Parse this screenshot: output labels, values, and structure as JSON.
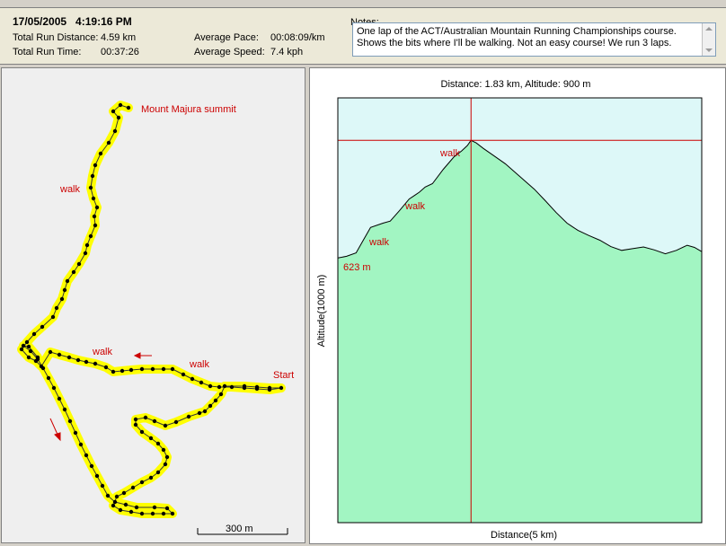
{
  "summary": {
    "datetime": "17/05/2005   4:19:16 PM",
    "distance_label": "Total Run Distance:",
    "distance_value": "4.59 km",
    "time_label": "Total Run Time:",
    "time_value": "00:37:26",
    "pace_label": "Average Pace:",
    "pace_value": "00:08:09/km",
    "speed_label": "Average Speed:",
    "speed_value": "7.4 kph",
    "notes_label": "Notes:",
    "notes_text": "One lap of the ACT/Australian Mountain Running Championships course. Shows the bits where I'll be walking. Not an easy course! We run 3 laps."
  },
  "map": {
    "summit_label": "Mount Majura summit",
    "start_label": "Start",
    "walk_labels": [
      "walk",
      "walk",
      "walk"
    ],
    "scale_label": "300 m",
    "colors": {
      "route": "#ffff00",
      "point": "#000000",
      "annotation": "#cc0000"
    }
  },
  "chart": {
    "title": "Distance: 1.83 km, Altitude: 900 m",
    "ylabel": "Altitude(1000 m)",
    "xlabel": "Distance(5 km)",
    "start_altitude_label": "623 m",
    "walk_labels": [
      "walk",
      "walk",
      "walk"
    ],
    "colors": {
      "sky": "#ddf8f8",
      "terrain": "#a2f5c2",
      "cursor": "#cc0000"
    }
  },
  "chart_data": {
    "type": "area",
    "title": "Distance: 1.83 km, Altitude: 900 m",
    "xlabel": "Distance(5 km)",
    "ylabel": "Altitude(1000 m)",
    "xlim": [
      0,
      5
    ],
    "ylim": [
      0,
      1000
    ],
    "cursor": {
      "x": 1.83,
      "y": 900
    },
    "series": [
      {
        "x": [
          0,
          0.12,
          0.25,
          0.35,
          0.45,
          0.62,
          0.72,
          0.85,
          0.98,
          1.05,
          1.12,
          1.2,
          1.3,
          1.45,
          1.6,
          1.7,
          1.78,
          1.83,
          1.9,
          2.0,
          2.15,
          2.3,
          2.5,
          2.7,
          2.85,
          3.0,
          3.15,
          3.3,
          3.45,
          3.6,
          3.75,
          3.9,
          4.05,
          4.2,
          4.35,
          4.5,
          4.65,
          4.8,
          4.9,
          5.0
        ],
        "y": [
          623,
          627,
          635,
          665,
          695,
          705,
          710,
          735,
          762,
          770,
          778,
          790,
          798,
          832,
          862,
          875,
          888,
          900,
          894,
          881,
          863,
          845,
          815,
          785,
          758,
          730,
          705,
          688,
          676,
          665,
          650,
          641,
          645,
          649,
          642,
          633,
          641,
          653,
          648,
          638
        ]
      }
    ]
  }
}
